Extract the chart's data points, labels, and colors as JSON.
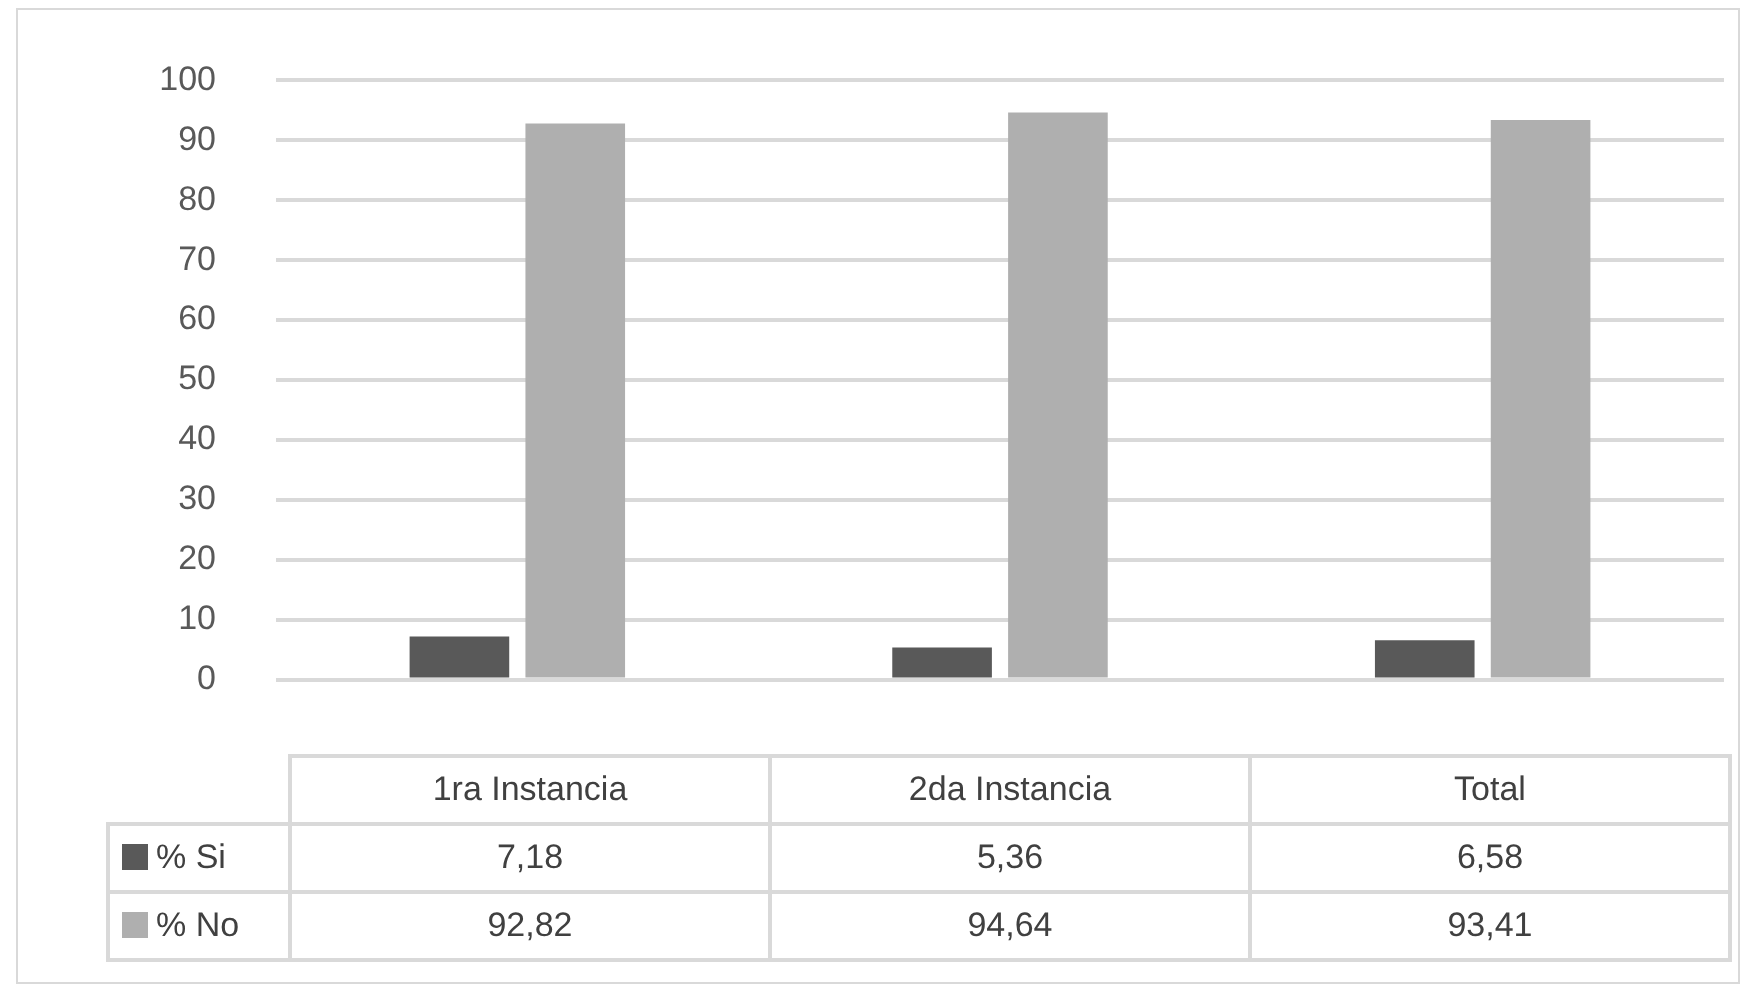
{
  "chart_data": {
    "type": "bar",
    "categories": [
      "1ra Instancia",
      "2da Instancia",
      "Total"
    ],
    "series": [
      {
        "name": "% Si",
        "color": "#595959",
        "values": [
          7.18,
          5.36,
          6.58
        ],
        "value_labels": [
          "7,18",
          "5,36",
          "6,58"
        ]
      },
      {
        "name": "% No",
        "color": "#afafaf",
        "values": [
          92.82,
          94.64,
          93.41
        ],
        "value_labels": [
          "92,82",
          "94,64",
          "93,41"
        ]
      }
    ],
    "ylim": [
      0,
      100
    ],
    "yticks": [
      0,
      10,
      20,
      30,
      40,
      50,
      60,
      70,
      80,
      90,
      100
    ],
    "grid": "y",
    "legend": "bottom"
  }
}
